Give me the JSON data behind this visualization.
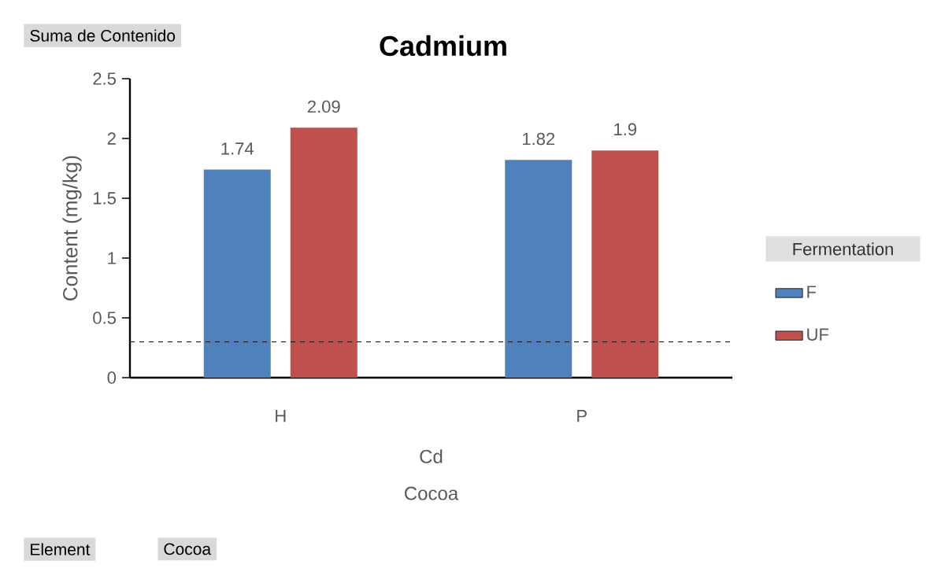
{
  "chart_data": {
    "type": "bar",
    "title": "Cadmium",
    "xlabel": "Cocoa",
    "ylabel": "Content (mg/kg)",
    "legend_title": "Fermentation",
    "categories": [
      "H",
      "P"
    ],
    "series": [
      {
        "name": "F",
        "color": "#4f81bd",
        "values": [
          1.74,
          1.82
        ]
      },
      {
        "name": "UF",
        "color": "#c0504d",
        "values": [
          2.09,
          1.9
        ]
      }
    ],
    "ylim": [
      0,
      2.5
    ],
    "yticks": [
      0,
      0.5,
      1,
      1.5,
      2,
      2.5
    ],
    "data_labels": true,
    "legend": "right",
    "grid": false,
    "ref_lines": [
      {
        "axis": "y",
        "value": 0.3,
        "line_style": "dashed",
        "color": "#000000"
      }
    ],
    "annotations": [
      "Cd",
      "Suma de Contenido",
      "Element",
      "Cocoa"
    ]
  }
}
